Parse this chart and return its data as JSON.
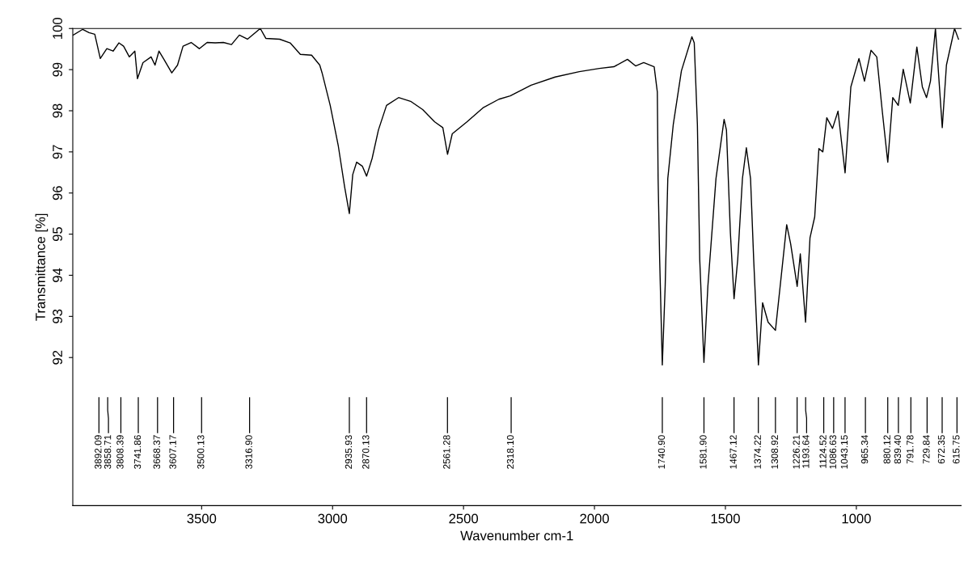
{
  "chart_data": {
    "type": "line",
    "xlabel": "Wavenumber cm-1",
    "ylabel": "Transmittance [%]",
    "xlim": [
      3992,
      600
    ],
    "xticks": [
      3500,
      3000,
      2500,
      2000,
      1500,
      1000
    ],
    "ylim": [
      88.4,
      100
    ],
    "yticks": [
      92,
      93,
      94,
      95,
      96,
      97,
      98,
      99,
      100
    ],
    "grid": false,
    "marker": "none",
    "line_style": "solid",
    "series": [
      {
        "color": "#000000",
        "x": [
          3990,
          3954,
          3930,
          3908,
          3887,
          3862,
          3838,
          3816,
          3798,
          3776,
          3755,
          3745,
          3724,
          3693,
          3678,
          3663,
          3644,
          3614,
          3592,
          3571,
          3540,
          3509,
          3479,
          3448,
          3417,
          3386,
          3356,
          3325,
          3276,
          3255,
          3202,
          3162,
          3123,
          3080,
          3049,
          3040,
          3009,
          2978,
          2954,
          2936,
          2923,
          2908,
          2886,
          2870,
          2849,
          2825,
          2794,
          2748,
          2702,
          2656,
          2610,
          2579,
          2561,
          2543,
          2487,
          2426,
          2365,
          2322,
          2242,
          2150,
          2058,
          1981,
          1926,
          1874,
          1843,
          1812,
          1772,
          1760,
          1757,
          1751,
          1741,
          1730,
          1720,
          1699,
          1668,
          1628,
          1619,
          1607,
          1598,
          1582,
          1567,
          1536,
          1505,
          1496,
          1481,
          1467,
          1453,
          1435,
          1420,
          1404,
          1392,
          1374,
          1358,
          1337,
          1309,
          1291,
          1266,
          1251,
          1226,
          1214,
          1194,
          1177,
          1159,
          1143,
          1128,
          1113,
          1091,
          1070,
          1043,
          1021,
          990,
          969,
          944,
          922,
          901,
          880,
          861,
          840,
          821,
          794,
          769,
          748,
          732,
          717,
          698,
          672,
          656,
          625,
          610
        ],
        "values": [
          99.84,
          99.98,
          99.9,
          99.86,
          99.27,
          99.51,
          99.45,
          99.65,
          99.57,
          99.31,
          99.45,
          98.78,
          99.17,
          99.31,
          99.11,
          99.45,
          99.25,
          98.92,
          99.11,
          99.57,
          99.66,
          99.51,
          99.66,
          99.65,
          99.66,
          99.61,
          99.84,
          99.74,
          100.0,
          99.76,
          99.74,
          99.65,
          99.37,
          99.35,
          99.11,
          98.92,
          98.13,
          97.14,
          96.15,
          95.5,
          96.45,
          96.75,
          96.65,
          96.41,
          96.84,
          97.53,
          98.13,
          98.32,
          98.23,
          98.03,
          97.73,
          97.59,
          96.94,
          97.44,
          97.73,
          98.07,
          98.28,
          98.36,
          98.62,
          98.82,
          98.95,
          99.03,
          99.07,
          99.25,
          99.09,
          99.17,
          99.07,
          98.46,
          96.35,
          94.38,
          91.82,
          93.73,
          96.35,
          97.67,
          98.97,
          99.8,
          99.65,
          97.67,
          94.38,
          91.88,
          93.73,
          96.35,
          97.79,
          97.53,
          95.03,
          93.43,
          94.38,
          96.35,
          97.1,
          96.35,
          94.38,
          91.82,
          93.33,
          92.86,
          92.66,
          93.73,
          95.23,
          94.77,
          93.73,
          94.52,
          92.86,
          94.91,
          95.42,
          97.08,
          97.0,
          97.83,
          97.57,
          97.99,
          96.49,
          98.58,
          99.27,
          98.72,
          99.47,
          99.31,
          97.99,
          96.75,
          98.32,
          98.13,
          99.01,
          98.19,
          99.55,
          98.58,
          98.32,
          98.72,
          100.0,
          97.59,
          99.11,
          100.0,
          99.74
        ]
      }
    ],
    "ref_lines": [
      {
        "axis": "x",
        "value": 3892.09,
        "label": "3892.09"
      },
      {
        "axis": "x",
        "value": 3858.71,
        "label": "3858.71"
      },
      {
        "axis": "x",
        "value": 3808.39,
        "label": "3808.39"
      },
      {
        "axis": "x",
        "value": 3741.86,
        "label": "3741.86"
      },
      {
        "axis": "x",
        "value": 3668.37,
        "label": "3668.37"
      },
      {
        "axis": "x",
        "value": 3607.17,
        "label": "3607.17"
      },
      {
        "axis": "x",
        "value": 3500.13,
        "label": "3500.13"
      },
      {
        "axis": "x",
        "value": 3316.9,
        "label": "3316.90"
      },
      {
        "axis": "x",
        "value": 2935.93,
        "label": "2935.93"
      },
      {
        "axis": "x",
        "value": 2870.13,
        "label": "2870.13"
      },
      {
        "axis": "x",
        "value": 2561.28,
        "label": "2561.28"
      },
      {
        "axis": "x",
        "value": 2318.1,
        "label": "2318.10"
      },
      {
        "axis": "x",
        "value": 1740.9,
        "label": "1740.90"
      },
      {
        "axis": "x",
        "value": 1581.9,
        "label": "1581.90"
      },
      {
        "axis": "x",
        "value": 1467.12,
        "label": "1467.12"
      },
      {
        "axis": "x",
        "value": 1374.22,
        "label": "1374.22"
      },
      {
        "axis": "x",
        "value": 1308.92,
        "label": "1308.92"
      },
      {
        "axis": "x",
        "value": 1226.21,
        "label": "1226.21"
      },
      {
        "axis": "x",
        "value": 1193.64,
        "label": "1193.64"
      },
      {
        "axis": "x",
        "value": 1124.52,
        "label": "1124.52"
      },
      {
        "axis": "x",
        "value": 1086.63,
        "label": "1086.63"
      },
      {
        "axis": "x",
        "value": 1043.15,
        "label": "1043.15"
      },
      {
        "axis": "x",
        "value": 965.34,
        "label": "965.34"
      },
      {
        "axis": "x",
        "value": 880.12,
        "label": "880.12"
      },
      {
        "axis": "x",
        "value": 839.4,
        "label": "839.40"
      },
      {
        "axis": "x",
        "value": 791.78,
        "label": "791.78"
      },
      {
        "axis": "x",
        "value": 729.84,
        "label": "729.84"
      },
      {
        "axis": "x",
        "value": 672.35,
        "label": "672.35"
      },
      {
        "axis": "x",
        "value": 615.75,
        "label": "615.75"
      }
    ]
  }
}
